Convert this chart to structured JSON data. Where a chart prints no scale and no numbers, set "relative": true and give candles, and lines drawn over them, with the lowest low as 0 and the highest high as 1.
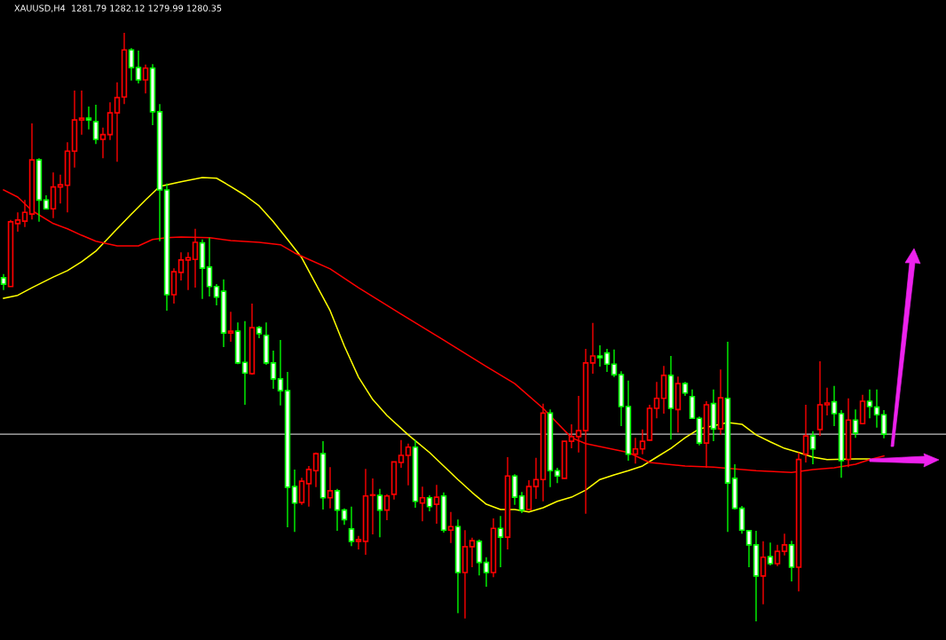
{
  "chart_data": {
    "type": "candlestick",
    "title": "XAUUSD,H4  1281.79 1282.12 1279.99 1280.35",
    "relative": true,
    "categories": [
      null,
      null,
      null,
      null,
      null,
      null,
      null,
      null,
      null,
      null,
      null,
      null,
      null,
      null,
      null,
      null,
      null,
      null,
      null,
      null,
      null,
      null,
      null,
      null,
      null,
      null,
      null,
      null,
      null,
      null,
      null,
      null,
      null,
      null,
      null,
      null,
      null,
      null,
      null,
      null,
      null,
      null,
      null,
      null,
      null,
      null,
      null,
      null,
      null,
      null,
      null,
      null,
      null,
      null,
      null,
      null,
      null,
      null,
      null,
      null,
      null,
      null,
      null,
      null,
      null,
      null,
      null,
      null,
      null,
      null,
      null,
      null,
      null,
      null,
      null,
      null,
      null,
      null,
      null,
      null,
      null,
      null,
      null,
      null,
      null,
      null,
      null,
      null,
      null,
      null,
      null,
      null,
      null,
      null,
      null,
      null,
      null,
      null,
      null,
      null,
      null,
      null,
      null,
      null,
      null,
      null,
      null,
      null,
      null,
      null,
      null,
      null,
      null,
      null,
      null,
      null,
      null,
      null,
      null,
      null,
      null,
      null,
      null,
      null,
      null
    ],
    "ohlc": [
      [
        0.584,
        0.59,
        0.563,
        0.573
      ],
      [
        0.569,
        0.682,
        0.569,
        0.679
      ],
      [
        0.676,
        0.695,
        0.662,
        0.682
      ],
      [
        0.68,
        0.716,
        0.67,
        0.695
      ],
      [
        0.692,
        0.846,
        0.683,
        0.784
      ],
      [
        0.784,
        0.787,
        0.679,
        0.716
      ],
      [
        0.716,
        0.724,
        0.7,
        0.701
      ],
      [
        0.701,
        0.763,
        0.685,
        0.738
      ],
      [
        0.738,
        0.759,
        0.71,
        0.742
      ],
      [
        0.741,
        0.814,
        0.695,
        0.799
      ],
      [
        0.799,
        0.902,
        0.771,
        0.852
      ],
      [
        0.852,
        0.902,
        0.827,
        0.855
      ],
      [
        0.855,
        0.875,
        0.836,
        0.852
      ],
      [
        0.849,
        0.878,
        0.811,
        0.819
      ],
      [
        0.819,
        0.839,
        0.787,
        0.827
      ],
      [
        0.827,
        0.882,
        0.818,
        0.864
      ],
      [
        0.864,
        0.916,
        0.781,
        0.89
      ],
      [
        0.891,
        1.0,
        0.879,
        0.971
      ],
      [
        0.971,
        0.974,
        0.919,
        0.941
      ],
      [
        0.941,
        0.97,
        0.914,
        0.92
      ],
      [
        0.92,
        0.946,
        0.897,
        0.94
      ],
      [
        0.94,
        0.947,
        0.843,
        0.866
      ],
      [
        0.866,
        0.879,
        0.646,
        0.733
      ],
      [
        0.733,
        0.744,
        0.528,
        0.555
      ],
      [
        0.555,
        0.6,
        0.54,
        0.594
      ],
      [
        0.593,
        0.627,
        0.579,
        0.614
      ],
      [
        0.614,
        0.627,
        0.563,
        0.618
      ],
      [
        0.615,
        0.667,
        0.567,
        0.644
      ],
      [
        0.643,
        0.649,
        0.548,
        0.6
      ],
      [
        0.602,
        0.652,
        0.552,
        0.569
      ],
      [
        0.569,
        0.573,
        0.537,
        0.551
      ],
      [
        0.561,
        0.581,
        0.466,
        0.49
      ],
      [
        0.49,
        0.526,
        0.475,
        0.493
      ],
      [
        0.493,
        0.508,
        0.437,
        0.439
      ],
      [
        0.44,
        0.51,
        0.368,
        0.422
      ],
      [
        0.421,
        0.54,
        0.419,
        0.499
      ],
      [
        0.499,
        0.502,
        0.481,
        0.489
      ],
      [
        0.486,
        0.508,
        0.436,
        0.439
      ],
      [
        0.439,
        0.46,
        0.395,
        0.412
      ],
      [
        0.412,
        0.478,
        0.367,
        0.392
      ],
      [
        0.392,
        0.424,
        0.16,
        0.228
      ],
      [
        0.229,
        0.258,
        0.152,
        0.201
      ],
      [
        0.202,
        0.244,
        0.198,
        0.238
      ],
      [
        0.234,
        0.264,
        0.195,
        0.258
      ],
      [
        0.256,
        0.287,
        0.228,
        0.285
      ],
      [
        0.285,
        0.306,
        0.19,
        0.21
      ],
      [
        0.21,
        0.262,
        0.192,
        0.222
      ],
      [
        0.222,
        0.225,
        0.154,
        0.189
      ],
      [
        0.189,
        0.192,
        0.164,
        0.173
      ],
      [
        0.157,
        0.195,
        0.128,
        0.136
      ],
      [
        0.136,
        0.145,
        0.122,
        0.139
      ],
      [
        0.136,
        0.259,
        0.113,
        0.213
      ],
      [
        0.214,
        0.243,
        0.148,
        0.215
      ],
      [
        0.214,
        0.225,
        0.143,
        0.189
      ],
      [
        0.189,
        0.216,
        0.172,
        0.213
      ],
      [
        0.216,
        0.271,
        0.207,
        0.271
      ],
      [
        0.27,
        0.308,
        0.261,
        0.282
      ],
      [
        0.282,
        0.302,
        0.231,
        0.296
      ],
      [
        0.296,
        0.308,
        0.193,
        0.204
      ],
      [
        0.201,
        0.229,
        0.17,
        0.21
      ],
      [
        0.21,
        0.214,
        0.187,
        0.195
      ],
      [
        0.199,
        0.232,
        0.166,
        0.211
      ],
      [
        0.213,
        0.219,
        0.151,
        0.155
      ],
      [
        0.155,
        0.186,
        0.133,
        0.161
      ],
      [
        0.161,
        0.173,
        0.014,
        0.083
      ],
      [
        0.083,
        0.155,
        0.005,
        0.127
      ],
      [
        0.127,
        0.142,
        0.092,
        0.137
      ],
      [
        0.136,
        0.139,
        0.078,
        0.1
      ],
      [
        0.1,
        0.109,
        0.059,
        0.083
      ],
      [
        0.083,
        0.175,
        0.075,
        0.158
      ],
      [
        0.158,
        0.179,
        0.092,
        0.143
      ],
      [
        0.143,
        0.279,
        0.122,
        0.247
      ],
      [
        0.247,
        0.25,
        0.198,
        0.211
      ],
      [
        0.213,
        0.22,
        0.184,
        0.189
      ],
      [
        0.19,
        0.24,
        0.19,
        0.229
      ],
      [
        0.229,
        0.278,
        0.208,
        0.241
      ],
      [
        0.241,
        0.37,
        0.204,
        0.354
      ],
      [
        0.354,
        0.36,
        0.228,
        0.256
      ],
      [
        0.256,
        0.261,
        0.235,
        0.247
      ],
      [
        0.243,
        0.306,
        0.243,
        0.306
      ],
      [
        0.306,
        0.335,
        0.294,
        0.314
      ],
      [
        0.314,
        0.383,
        0.287,
        0.324
      ],
      [
        0.324,
        0.463,
        0.183,
        0.439
      ],
      [
        0.439,
        0.507,
        0.421,
        0.451
      ],
      [
        0.451,
        0.469,
        0.433,
        0.448
      ],
      [
        0.456,
        0.463,
        0.424,
        0.437
      ],
      [
        0.437,
        0.462,
        0.415,
        0.419
      ],
      [
        0.419,
        0.425,
        0.332,
        0.365
      ],
      [
        0.365,
        0.409,
        0.273,
        0.284
      ],
      [
        0.284,
        0.312,
        0.268,
        0.293
      ],
      [
        0.293,
        0.326,
        0.284,
        0.306
      ],
      [
        0.308,
        0.368,
        0.306,
        0.362
      ],
      [
        0.362,
        0.407,
        0.345,
        0.379
      ],
      [
        0.379,
        0.434,
        0.353,
        0.418
      ],
      [
        0.418,
        0.451,
        0.309,
        0.362
      ],
      [
        0.36,
        0.416,
        0.321,
        0.404
      ],
      [
        0.404,
        0.407,
        0.383,
        0.388
      ],
      [
        0.382,
        0.394,
        0.344,
        0.345
      ],
      [
        0.345,
        0.348,
        0.299,
        0.303
      ],
      [
        0.303,
        0.374,
        0.261,
        0.368
      ],
      [
        0.37,
        0.394,
        0.306,
        0.327
      ],
      [
        0.327,
        0.428,
        0.317,
        0.38
      ],
      [
        0.379,
        0.475,
        0.152,
        0.235
      ],
      [
        0.243,
        0.267,
        0.19,
        0.192
      ],
      [
        0.192,
        0.196,
        0.149,
        0.155
      ],
      [
        0.154,
        0.155,
        0.092,
        0.13
      ],
      [
        0.13,
        0.154,
        0.0,
        0.077
      ],
      [
        0.077,
        0.136,
        0.029,
        0.109
      ],
      [
        0.11,
        0.134,
        0.095,
        0.098
      ],
      [
        0.098,
        0.13,
        0.094,
        0.119
      ],
      [
        0.119,
        0.149,
        0.112,
        0.13
      ],
      [
        0.13,
        0.137,
        0.068,
        0.092
      ],
      [
        0.092,
        0.287,
        0.051,
        0.275
      ],
      [
        0.284,
        0.368,
        0.27,
        0.315
      ],
      [
        0.315,
        0.323,
        0.267,
        0.293
      ],
      [
        0.326,
        0.442,
        0.315,
        0.368
      ],
      [
        0.368,
        0.397,
        0.35,
        0.371
      ],
      [
        0.373,
        0.4,
        0.332,
        0.353
      ],
      [
        0.353,
        0.359,
        0.244,
        0.273
      ],
      [
        0.275,
        0.379,
        0.262,
        0.342
      ],
      [
        0.342,
        0.36,
        0.312,
        0.32
      ],
      [
        0.336,
        0.385,
        0.336,
        0.374
      ],
      [
        0.374,
        0.394,
        0.345,
        0.365
      ],
      [
        0.364,
        0.394,
        0.329,
        0.351
      ],
      [
        0.351,
        0.359,
        0.311,
        0.318
      ]
    ],
    "series": [
      {
        "type": "line",
        "color": "#ffff00",
        "values": [
          0.549,
          null,
          0.554,
          null,
          0.567,
          null,
          null,
          0.585,
          null,
          0.596,
          null,
          0.611,
          null,
          0.629,
          null,
          null,
          0.667,
          null,
          0.692,
          null,
          0.716,
          null,
          0.739,
          null,
          null,
          0.747,
          null,
          null,
          0.754,
          null,
          0.753,
          null,
          0.739,
          null,
          0.724,
          null,
          0.706,
          null,
          0.679,
          null,
          0.649,
          null,
          0.618,
          null,
          0.573,
          null,
          0.528,
          null,
          0.468,
          null,
          0.415,
          null,
          0.377,
          null,
          0.35,
          null,
          null,
          0.317,
          null,
          null,
          0.287,
          null,
          0.264,
          null,
          0.241,
          null,
          0.219,
          null,
          0.199,
          null,
          0.19,
          null,
          0.19,
          null,
          0.186,
          null,
          0.193,
          null,
          0.204,
          null,
          0.211,
          null,
          0.223,
          null,
          0.241,
          null,
          0.249,
          null,
          0.256,
          null,
          0.264,
          null,
          0.279,
          null,
          0.294,
          null,
          0.312,
          null,
          0.327,
          null,
          null,
          null,
          0.338,
          null,
          0.335,
          null,
          0.317,
          null,
          0.305,
          null,
          0.294,
          null,
          0.287,
          null,
          0.279,
          null,
          0.275,
          null,
          null,
          null,
          0.276,
          null,
          0.276,
          null,
          null
        ]
      },
      {
        "type": "line",
        "color": "#ff0000",
        "values": [
          0.733,
          null,
          0.721,
          null,
          0.698,
          null,
          null,
          0.676,
          null,
          0.667,
          null,
          0.656,
          null,
          0.646,
          null,
          null,
          0.638,
          null,
          null,
          0.638,
          null,
          0.649,
          null,
          0.652,
          null,
          0.653,
          null,
          null,
          null,
          0.652,
          null,
          null,
          0.647,
          null,
          null,
          null,
          0.644,
          null,
          null,
          0.64,
          null,
          0.626,
          null,
          0.615,
          null,
          null,
          0.599,
          null,
          null,
          null,
          0.567,
          null,
          null,
          null,
          null,
          null,
          0.522,
          null,
          null,
          null,
          null,
          null,
          0.478,
          null,
          null,
          null,
          null,
          null,
          0.433,
          null,
          null,
          null,
          0.404,
          null,
          null,
          null,
          0.362,
          null,
          null,
          null,
          0.312,
          null,
          0.302,
          null,
          null,
          null,
          null,
          null,
          0.287,
          null,
          null,
          0.27,
          null,
          null,
          null,
          null,
          0.264,
          null,
          null,
          null,
          0.262,
          null,
          null,
          null,
          null,
          null,
          0.256,
          null,
          null,
          null,
          null,
          0.253,
          null,
          null,
          0.258,
          null,
          null,
          0.261,
          null,
          null,
          0.267,
          null,
          0.275,
          null,
          0.281
        ]
      }
    ],
    "ref_lines": [
      {
        "axis": "y",
        "value": 0.318,
        "color": "#c0c0c0"
      }
    ],
    "grid": false,
    "legend": false
  }
}
